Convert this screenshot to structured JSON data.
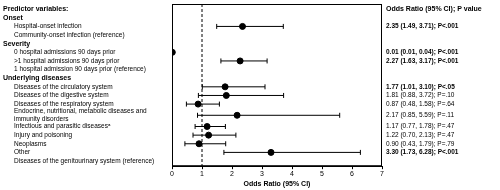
{
  "chart_data": {
    "type": "forest",
    "left_header": "Predictor variables:",
    "right_header": "Odds Ratio (95% CI); P value",
    "x_label": "Odds Ratio (95% CI)",
    "xlim": [
      0,
      7
    ],
    "xticks": [
      0,
      1,
      2,
      3,
      4,
      5,
      6,
      7
    ],
    "reference_line": 1,
    "color": "#000000",
    "groups": [
      {
        "name": "Onset",
        "rows": [
          {
            "label": "Hospital-onset infection",
            "value": 2.35,
            "ci": [
              1.49,
              3.71
            ],
            "value_label": "2.35 (1.49, 3.71); P<.001"
          },
          {
            "label": "Community-onset infection (reference)"
          }
        ]
      },
      {
        "name": "Severity",
        "rows": [
          {
            "label": "0 hospital admissions 90 days prior",
            "value": 0.01,
            "ci": [
              0.01,
              0.04
            ],
            "value_label": "0.01 (0.01, 0.04); P<.001"
          },
          {
            "label": ">1 hospital admissions 90 days prior",
            "value": 2.27,
            "ci": [
              1.63,
              3.17
            ],
            "value_label": "2.27 (1.63, 3.17); P<.001"
          },
          {
            "label": "1 hospital admission 90 days prior (reference)"
          }
        ]
      },
      {
        "name": "Underlying diseases",
        "rows": [
          {
            "label": "Diseases of the circulatory system",
            "value": 1.77,
            "ci": [
              1.01,
              3.1
            ],
            "value_label": "1.77 (1.01, 3.10); P<.05"
          },
          {
            "label": "Diseases of the digestive system",
            "value": 1.81,
            "ci": [
              0.88,
              3.72
            ],
            "value_label": "1.81 (0.88, 3.72); P=.10"
          },
          {
            "label": "Diseases of the respiratory system",
            "value": 0.87,
            "ci": [
              0.48,
              1.58
            ],
            "value_label": "0.87 (0.48, 1.58); P=.64"
          },
          {
            "label": "Endocrine, nutritional, metabolic diseases and immunity disorders",
            "value": 2.17,
            "ci": [
              0.85,
              5.59
            ],
            "value_label": "2.17 (0.85, 5.59); P=.11"
          },
          {
            "label": "Infectious and parasitic diseasesᵃ",
            "value": 1.17,
            "ci": [
              0.77,
              1.78
            ],
            "value_label": "1.17 (0.77, 1.78); P=.47"
          },
          {
            "label": "Injury and poisoning",
            "value": 1.22,
            "ci": [
              0.7,
              2.13
            ],
            "value_label": "1.22 (0.70, 2.13); P=.47"
          },
          {
            "label": "Neoplasms",
            "value": 0.9,
            "ci": [
              0.43,
              1.79
            ],
            "value_label": "0.90 (0.43, 1.79); P=.79"
          },
          {
            "label": "Other",
            "value": 3.3,
            "ci": [
              1.73,
              6.28
            ],
            "value_label": "3.30 (1.73, 6.28); P<.001"
          },
          {
            "label": "Diseases of the genitourinary system (reference)"
          }
        ]
      }
    ]
  }
}
